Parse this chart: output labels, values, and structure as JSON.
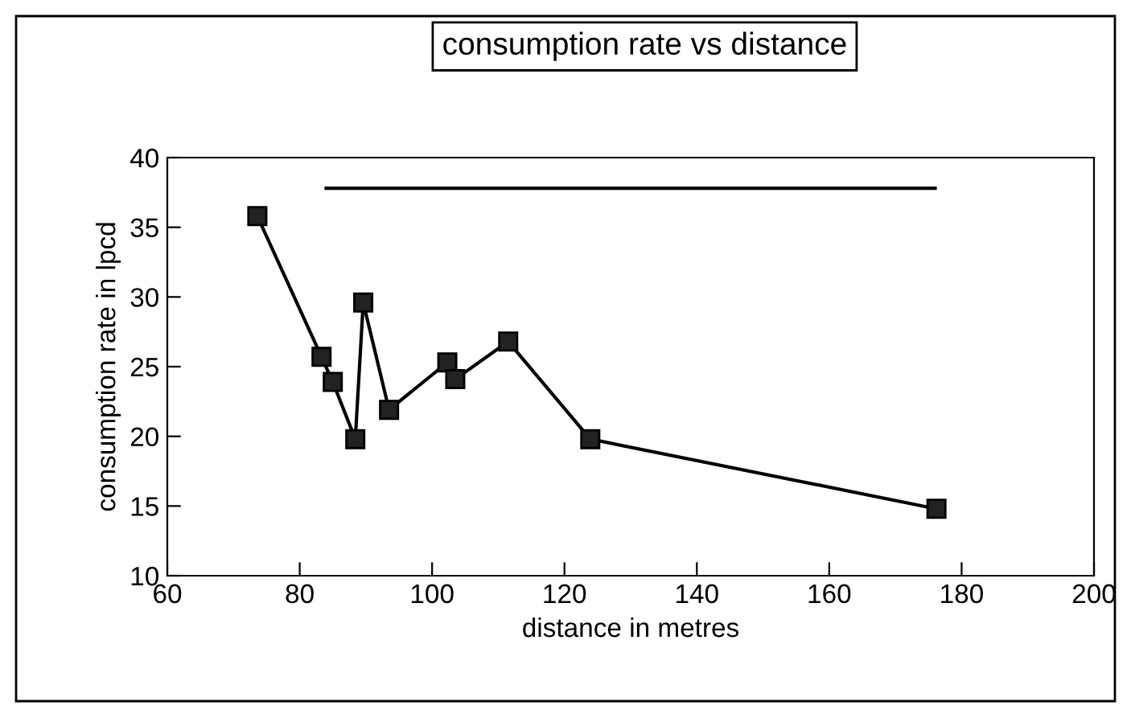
{
  "chart_data": {
    "type": "line",
    "title": "consumption rate vs distance",
    "xlabel": "distance in metres",
    "ylabel": "consumption rate in lpcd",
    "series": [
      {
        "color": "#000000",
        "marker": "square",
        "x": [
          73.6,
          83.3,
          85.0,
          88.4,
          89.6,
          93.5,
          102.3,
          103.5,
          111.5,
          123.9,
          176.2
        ],
        "values": [
          35.8,
          25.7,
          23.9,
          19.8,
          29.6,
          21.9,
          25.3,
          24.1,
          26.8,
          19.8,
          14.8
        ]
      },
      {
        "color": "#000000",
        "marker": "none",
        "x": [
          84,
          176
        ],
        "values": [
          37.8,
          37.8
        ]
      }
    ],
    "xlim": [
      60,
      200
    ],
    "xticks": [
      60,
      80,
      100,
      120,
      140,
      160,
      180,
      200
    ],
    "ylim": [
      10,
      40
    ],
    "yticks": [
      10,
      15,
      20,
      25,
      30,
      35,
      40
    ],
    "grid": false,
    "legend": false,
    "line_style": "solid"
  }
}
